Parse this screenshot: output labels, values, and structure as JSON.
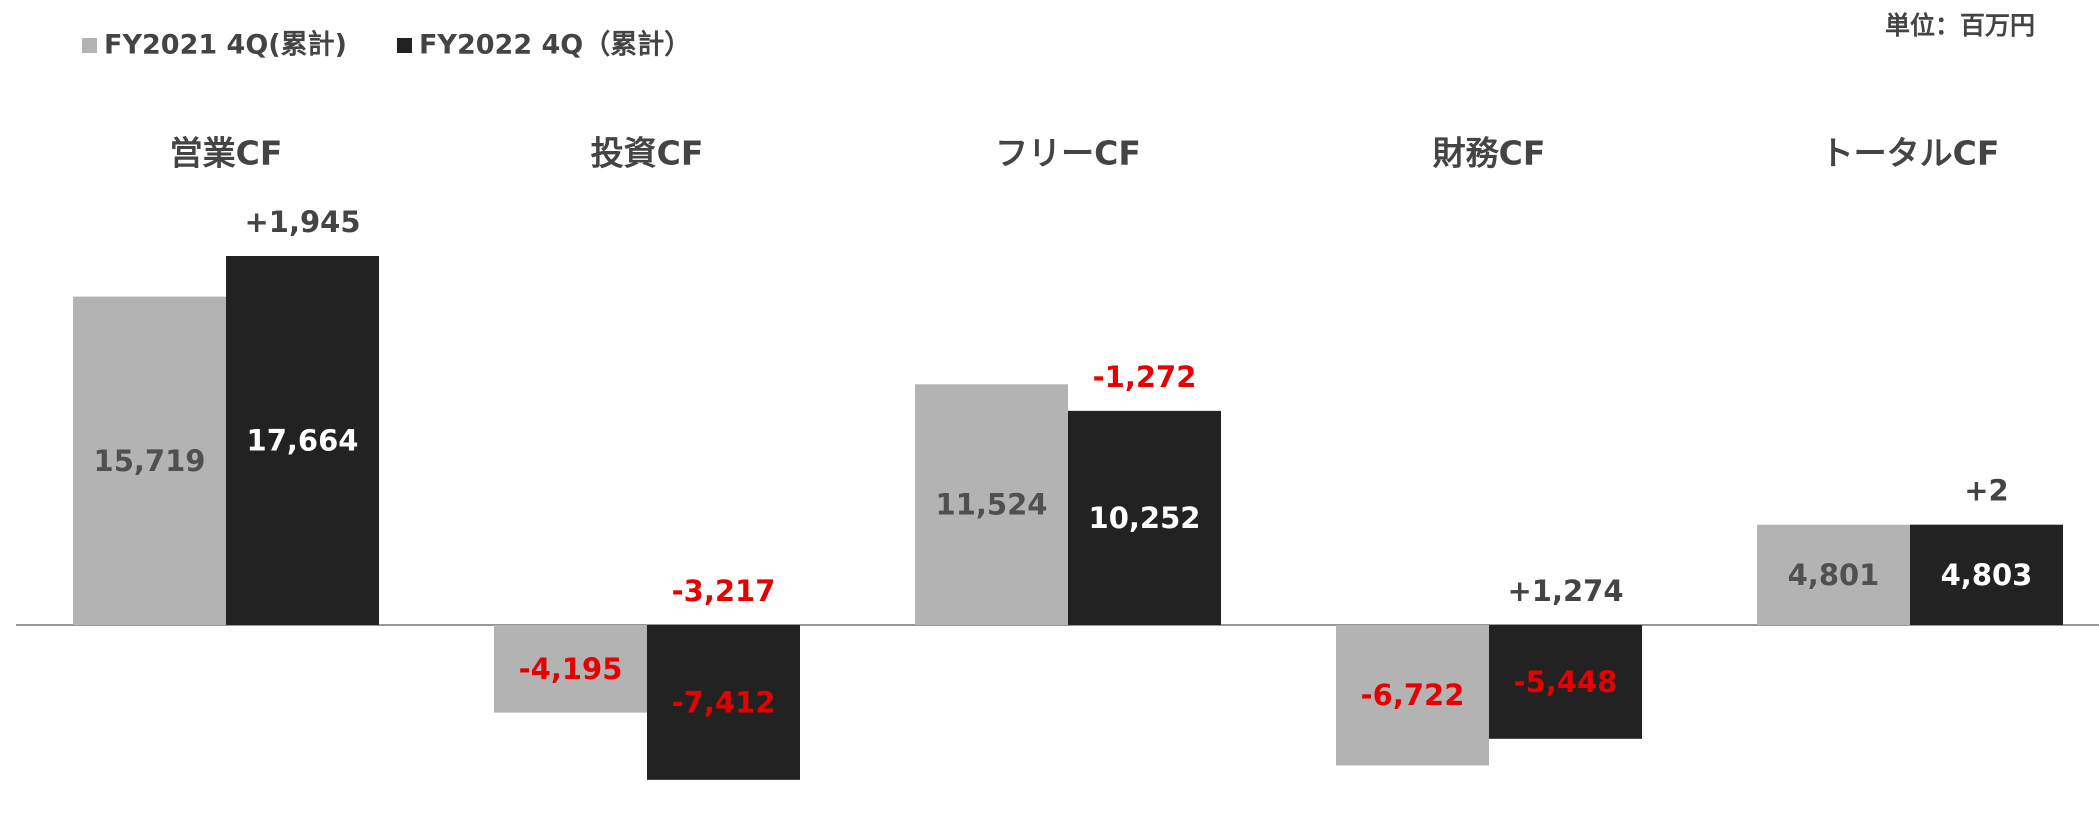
{
  "chart_data": {
    "type": "bar",
    "unit_note": "単位：百万円",
    "categories": [
      "営業CF",
      "投資CF",
      "フリーCF",
      "財務CF",
      "トータルCF"
    ],
    "series": [
      {
        "name": "FY2021 4Q(累計)",
        "color": "#b3b3b3",
        "label_color": "#505050",
        "values": [
          15719,
          -4195,
          11524,
          -6722,
          4801
        ],
        "value_labels": [
          "15,719",
          "-4,195",
          "11,524",
          "-6,722",
          "4,801"
        ]
      },
      {
        "name": "FY2022 4Q（累計）",
        "color": "#222222",
        "label_color": "#ffffff",
        "values": [
          17664,
          -7412,
          10252,
          -5448,
          4803
        ],
        "value_labels": [
          "17,664",
          "-7,412",
          "10,252",
          "-5,448",
          "4,803"
        ]
      }
    ],
    "differences": [
      1945,
      -3217,
      -1272,
      1274,
      2
    ],
    "difference_labels": [
      "+1,945",
      "-3,217",
      "-1,272",
      "+1,274",
      "+2"
    ],
    "negative_label_color": "#e60000",
    "difference_color": "#444444"
  }
}
